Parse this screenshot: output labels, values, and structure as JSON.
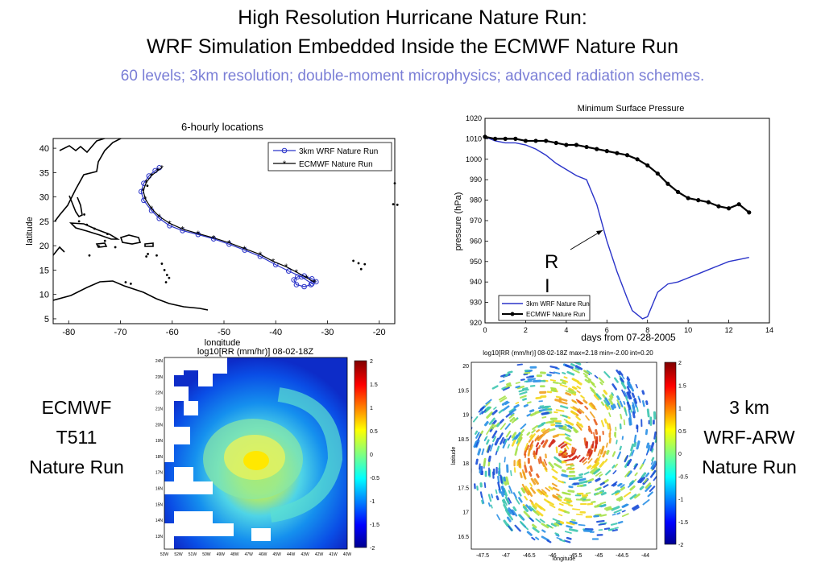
{
  "header": {
    "title_line1": "High Resolution Hurricane Nature Run:",
    "title_line2": "WRF Simulation Embedded Inside the ECMWF Nature Run",
    "subtitle": "60 levels; 3km resolution; double-moment microphysics; advanced radiation schemes."
  },
  "labels": {
    "left_line1": "ECMWF",
    "left_line2": "T511",
    "left_line3": "Nature Run",
    "right_line1": "3 km",
    "right_line2": "WRF-ARW",
    "right_line3": "Nature Run",
    "ri_r": "R",
    "ri_i": "I"
  },
  "colors": {
    "wrf": "#2b34c9",
    "ecmwf": "#000000",
    "subtitle": "#7a7ed6"
  },
  "chart_data": [
    {
      "type": "line",
      "title": "6-hourly locations",
      "xlabel": "longitude",
      "ylabel": "latitude",
      "xlim": [
        -83,
        -17
      ],
      "ylim": [
        4,
        42
      ],
      "xticks": [
        "-80",
        "-70",
        "-60",
        "-50",
        "-40",
        "-30",
        "-20"
      ],
      "yticks": [
        "5",
        "10",
        "15",
        "20",
        "25",
        "30",
        "35",
        "40"
      ],
      "legend_position": "top-right",
      "series": [
        {
          "name": "3km WRF Nature Run",
          "x": [
            -33.2,
            -34.5,
            -36,
            -36.5,
            -35.8,
            -34.5,
            -33,
            -32.2,
            -33,
            -35,
            -37.5,
            -40,
            -43,
            -46,
            -49,
            -52,
            -55,
            -58,
            -60.5,
            -62.5,
            -64,
            -65.5,
            -66,
            -65.5,
            -64.5,
            -63.3,
            -62.5
          ],
          "y": [
            12,
            11.6,
            12,
            13,
            13.6,
            13.8,
            13.2,
            12.6,
            12.2,
            13.6,
            14.8,
            16.1,
            17.8,
            19.1,
            20.3,
            21.4,
            22.3,
            23.1,
            24.1,
            25.6,
            27.2,
            29.3,
            31.1,
            32.8,
            34.3,
            35.4,
            36
          ]
        },
        {
          "name": "ECMWF Nature Run",
          "x": [
            -32.5,
            -34,
            -36,
            -38,
            -40.5,
            -43,
            -46,
            -49,
            -52,
            -55,
            -58,
            -60.5,
            -62.5,
            -64,
            -65.2,
            -65.6,
            -65,
            -64,
            -62.8,
            -62
          ],
          "y": [
            12.5,
            13.4,
            14.6,
            15.7,
            16.8,
            18.2,
            19.4,
            20.6,
            21.6,
            22.5,
            23.4,
            24.6,
            26,
            27.6,
            29.6,
            31.3,
            33,
            34.4,
            35.4,
            36
          ]
        }
      ]
    },
    {
      "type": "line",
      "title": "Minimum Surface Pressure",
      "xlabel": "days from 07-28-2005",
      "ylabel": "pressure (hPa)",
      "xlim": [
        0,
        14
      ],
      "ylim": [
        920,
        1020
      ],
      "xticks": [
        "0",
        "2",
        "4",
        "6",
        "8",
        "10",
        "12",
        "14"
      ],
      "yticks": [
        "920",
        "930",
        "940",
        "950",
        "960",
        "970",
        "980",
        "990",
        "1000",
        "1010",
        "1020"
      ],
      "legend_position": "bottom-left",
      "series": [
        {
          "name": "3km WRF Nature Run",
          "x": [
            0,
            0.5,
            1,
            1.5,
            2,
            2.5,
            3,
            3.5,
            4,
            4.5,
            5,
            5.5,
            6,
            6.5,
            7,
            7.25,
            7.5,
            7.75,
            8,
            8.5,
            9,
            9.5,
            10,
            10.5,
            11,
            11.5,
            12,
            12.5,
            13
          ],
          "y": [
            1011,
            1009,
            1008,
            1008,
            1007,
            1005,
            1002,
            998,
            995,
            992,
            990,
            978,
            960,
            945,
            932,
            926,
            924,
            922,
            923,
            935,
            939,
            940,
            942,
            944,
            946,
            948,
            950,
            951,
            952
          ]
        },
        {
          "name": "ECMWF Nature Run",
          "x": [
            0,
            0.5,
            1,
            1.5,
            2,
            2.5,
            3,
            3.5,
            4,
            4.5,
            5,
            5.5,
            6,
            6.5,
            7,
            7.5,
            8,
            8.5,
            9,
            9.5,
            10,
            10.5,
            11,
            11.5,
            12,
            12.5,
            13
          ],
          "y": [
            1011,
            1010,
            1010,
            1010,
            1009,
            1009,
            1009,
            1008,
            1007,
            1007,
            1006,
            1005,
            1004,
            1003,
            1002,
            1000,
            997,
            993,
            988,
            984,
            981,
            980,
            979,
            977,
            976,
            978,
            974
          ]
        }
      ]
    },
    {
      "type": "heatmap",
      "title": "log10[RR (mm/hr)] 08-02-18Z",
      "xticks": [
        "53W",
        "52W",
        "51W",
        "50W",
        "49W",
        "48W",
        "47W",
        "46W",
        "45W",
        "44W",
        "43W",
        "42W",
        "41W",
        "40W"
      ],
      "yticks": [
        "24N",
        "23N",
        "22N",
        "21N",
        "20N",
        "19N",
        "18N",
        "17N",
        "16N",
        "15N",
        "14N",
        "13N"
      ],
      "colorbar_ticks": [
        "2",
        "1.5",
        "1",
        "0.5",
        "0",
        "-0.5",
        "-1",
        "-1.5",
        "-2"
      ]
    },
    {
      "type": "heatmap",
      "title": "log10[RR (mm/hr)] 08-02-18Z max=2.18 min=-2.00 int=0.20",
      "xlabel": "longitude",
      "ylabel": "latitude",
      "xticks": [
        "-47.5",
        "-47",
        "-46.5",
        "-46",
        "-45.5",
        "-45",
        "-44.5",
        "-44"
      ],
      "yticks": [
        "20",
        "19.5",
        "19",
        "18.5",
        "18",
        "17.5",
        "17",
        "16.5"
      ],
      "colorbar_ticks": [
        "2",
        "1.5",
        "1",
        "0.5",
        "0",
        "-0.5",
        "-1",
        "-1.5",
        "-2"
      ]
    }
  ]
}
